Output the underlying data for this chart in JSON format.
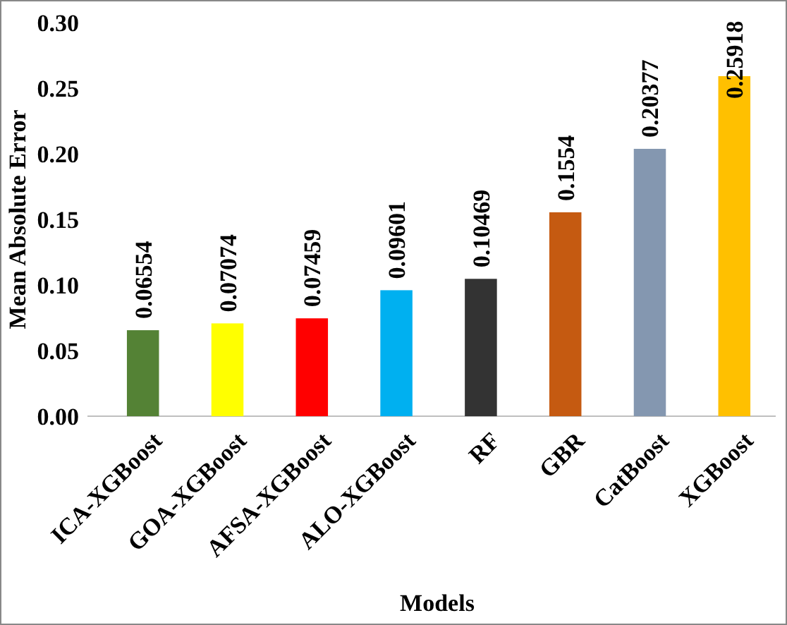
{
  "chart_data": {
    "type": "bar",
    "xlabel": "Models",
    "ylabel": "Mean Absolute Error",
    "categories": [
      "ICA-XGBoost",
      "GOA-XGBoost",
      "AFSA-XGBoost",
      "ALO-XGBoost",
      "RF",
      "GBR",
      "CatBoost",
      "XGBoost"
    ],
    "values": [
      0.06554,
      0.07074,
      0.07459,
      0.09601,
      0.10469,
      0.1554,
      0.20377,
      0.25918
    ],
    "colors": [
      "#548235",
      "#ffff00",
      "#ff0000",
      "#00b0f0",
      "#333333",
      "#c55a11",
      "#8497b0",
      "#ffc000"
    ],
    "ylim": [
      0,
      0.3
    ],
    "yticks": [
      {
        "value": 0,
        "label": "0.00"
      },
      {
        "value": 0.05,
        "label": "0.05"
      },
      {
        "value": 0.1,
        "label": "0.10"
      },
      {
        "value": 0.15,
        "label": "0.15"
      },
      {
        "value": 0.2,
        "label": "0.20"
      },
      {
        "value": 0.25,
        "label": "0.25"
      },
      {
        "value": 0.3,
        "label": "0.30"
      }
    ],
    "data_labels": true,
    "grid": false
  }
}
